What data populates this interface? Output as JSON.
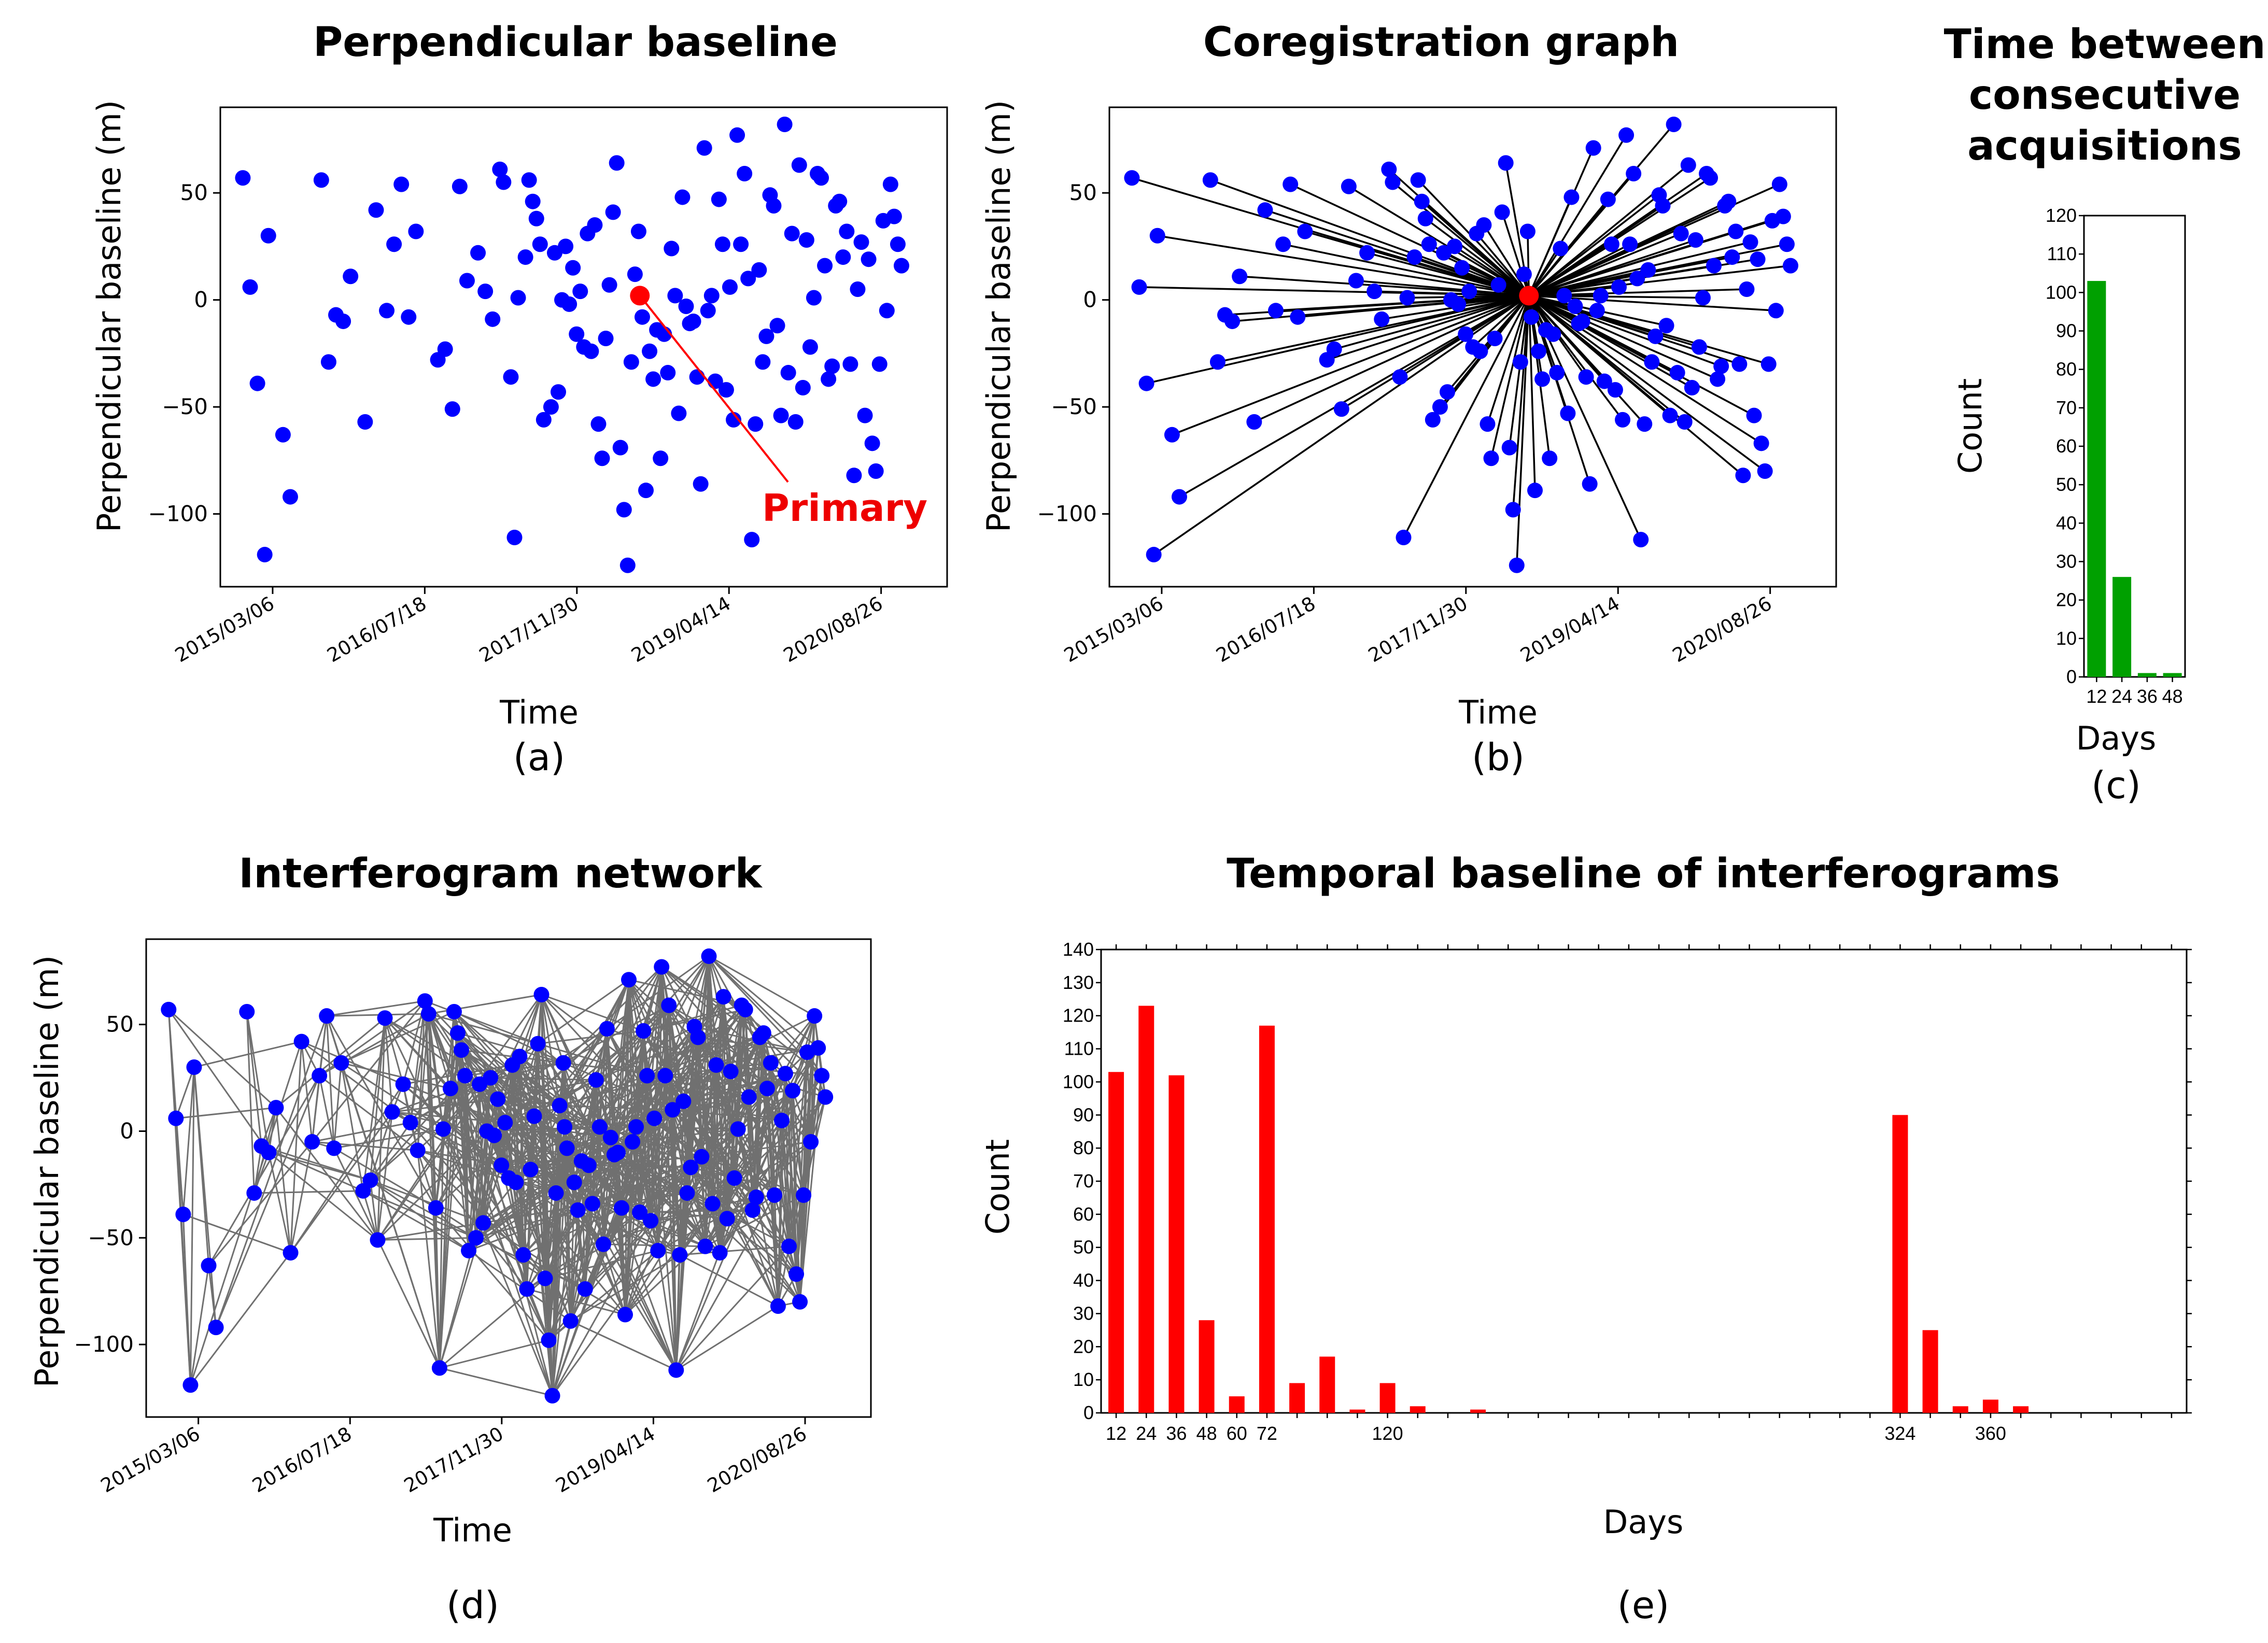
{
  "colors": {
    "point": "#0000ff",
    "primary": "#ff0000",
    "edge": "#000000",
    "network": "#707070",
    "hist_c": "#00a000",
    "hist_e": "#ff0000"
  },
  "chart_data": [
    {
      "id": "a",
      "type": "scatter",
      "title": "Perpendicular baseline",
      "xlabel": "Time",
      "ylabel": "Perpendicular baseline (m)",
      "subcaption": "(a)",
      "annotation": "Primary",
      "xtick_labels": [
        "2015/03/06",
        "2016/07/18",
        "2017/11/30",
        "2019/04/14",
        "2020/08/26"
      ],
      "yticks": [
        50,
        0,
        -50,
        -100
      ],
      "ytick_labels": [
        "50",
        "0",
        "−50",
        "−100"
      ],
      "ylim": [
        -134,
        90
      ],
      "xlim": [
        "2014/09/15",
        "2021/03/31"
      ],
      "primary": {
        "x": "2018/06/25",
        "y": 2
      },
      "points": [
        {
          "x": "2014/11/28",
          "y": 57
        },
        {
          "x": "2014/12/22",
          "y": 6
        },
        {
          "x": "2015/01/15",
          "y": -39
        },
        {
          "x": "2015/02/08",
          "y": -119
        },
        {
          "x": "2015/02/20",
          "y": 30
        },
        {
          "x": "2015/04/09",
          "y": -63
        },
        {
          "x": "2015/05/03",
          "y": -92
        },
        {
          "x": "2015/08/13",
          "y": 56
        },
        {
          "x": "2015/09/06",
          "y": -29
        },
        {
          "x": "2015/09/30",
          "y": -7
        },
        {
          "x": "2015/10/24",
          "y": -10
        },
        {
          "x": "2015/11/17",
          "y": 11
        },
        {
          "x": "2016/01/04",
          "y": -57
        },
        {
          "x": "2016/02/09",
          "y": 42
        },
        {
          "x": "2016/03/15",
          "y": -5
        },
        {
          "x": "2016/04/08",
          "y": 26
        },
        {
          "x": "2016/05/02",
          "y": 54
        },
        {
          "x": "2016/05/26",
          "y": -8
        },
        {
          "x": "2016/06/19",
          "y": 32
        },
        {
          "x": "2016/08/30",
          "y": -28
        },
        {
          "x": "2016/09/23",
          "y": -23
        },
        {
          "x": "2016/10/17",
          "y": -51
        },
        {
          "x": "2016/11/10",
          "y": 53
        },
        {
          "x": "2016/12/04",
          "y": 9
        },
        {
          "x": "2017/01/09",
          "y": 22
        },
        {
          "x": "2017/02/02",
          "y": 4
        },
        {
          "x": "2017/02/26",
          "y": -9
        },
        {
          "x": "2017/03/22",
          "y": 61
        },
        {
          "x": "2017/04/03",
          "y": 55
        },
        {
          "x": "2017/04/27",
          "y": -36
        },
        {
          "x": "2017/05/09",
          "y": -111
        },
        {
          "x": "2017/05/21",
          "y": 1
        },
        {
          "x": "2017/06/14",
          "y": 20
        },
        {
          "x": "2017/06/26",
          "y": 56
        },
        {
          "x": "2017/07/08",
          "y": 46
        },
        {
          "x": "2017/07/20",
          "y": 38
        },
        {
          "x": "2017/08/01",
          "y": 26
        },
        {
          "x": "2017/08/13",
          "y": -56
        },
        {
          "x": "2017/09/06",
          "y": -50
        },
        {
          "x": "2017/09/18",
          "y": 22
        },
        {
          "x": "2017/09/30",
          "y": -43
        },
        {
          "x": "2017/10/12",
          "y": 0
        },
        {
          "x": "2017/10/24",
          "y": 25
        },
        {
          "x": "2017/11/05",
          "y": -2
        },
        {
          "x": "2017/11/17",
          "y": 15
        },
        {
          "x": "2017/11/29",
          "y": -16
        },
        {
          "x": "2017/12/11",
          "y": 4
        },
        {
          "x": "2017/12/23",
          "y": -22
        },
        {
          "x": "2018/01/04",
          "y": 31
        },
        {
          "x": "2018/01/16",
          "y": -24
        },
        {
          "x": "2018/01/28",
          "y": 35
        },
        {
          "x": "2018/02/09",
          "y": -58
        },
        {
          "x": "2018/02/21",
          "y": -74
        },
        {
          "x": "2018/03/05",
          "y": -18
        },
        {
          "x": "2018/03/17",
          "y": 7
        },
        {
          "x": "2018/03/29",
          "y": 41
        },
        {
          "x": "2018/04/10",
          "y": 64
        },
        {
          "x": "2018/04/22",
          "y": -69
        },
        {
          "x": "2018/05/04",
          "y": -98
        },
        {
          "x": "2018/05/16",
          "y": -124
        },
        {
          "x": "2018/05/28",
          "y": -29
        },
        {
          "x": "2018/06/09",
          "y": 12
        },
        {
          "x": "2018/06/21",
          "y": 32
        },
        {
          "x": "2018/07/03",
          "y": -8
        },
        {
          "x": "2018/07/15",
          "y": -89
        },
        {
          "x": "2018/07/27",
          "y": -24
        },
        {
          "x": "2018/08/08",
          "y": -37
        },
        {
          "x": "2018/08/20",
          "y": -14
        },
        {
          "x": "2018/09/01",
          "y": -74
        },
        {
          "x": "2018/09/13",
          "y": -16
        },
        {
          "x": "2018/09/25",
          "y": -34
        },
        {
          "x": "2018/10/07",
          "y": 24
        },
        {
          "x": "2018/10/19",
          "y": 2
        },
        {
          "x": "2018/10/31",
          "y": -53
        },
        {
          "x": "2018/11/12",
          "y": 48
        },
        {
          "x": "2018/11/24",
          "y": -3
        },
        {
          "x": "2018/12/06",
          "y": -11
        },
        {
          "x": "2018/12/18",
          "y": -10
        },
        {
          "x": "2018/12/30",
          "y": -36
        },
        {
          "x": "2019/01/11",
          "y": -86
        },
        {
          "x": "2019/01/23",
          "y": 71
        },
        {
          "x": "2019/02/04",
          "y": -5
        },
        {
          "x": "2019/02/16",
          "y": 2
        },
        {
          "x": "2019/02/28",
          "y": -38
        },
        {
          "x": "2019/03/12",
          "y": 47
        },
        {
          "x": "2019/03/24",
          "y": 26
        },
        {
          "x": "2019/04/05",
          "y": -42
        },
        {
          "x": "2019/04/17",
          "y": 6
        },
        {
          "x": "2019/04/29",
          "y": -56
        },
        {
          "x": "2019/05/11",
          "y": 77
        },
        {
          "x": "2019/05/23",
          "y": 26
        },
        {
          "x": "2019/06/04",
          "y": 59
        },
        {
          "x": "2019/06/16",
          "y": 10
        },
        {
          "x": "2019/06/28",
          "y": -112
        },
        {
          "x": "2019/07/10",
          "y": -58
        },
        {
          "x": "2019/07/22",
          "y": 14
        },
        {
          "x": "2019/08/03",
          "y": -29
        },
        {
          "x": "2019/08/15",
          "y": -17
        },
        {
          "x": "2019/08/27",
          "y": 49
        },
        {
          "x": "2019/09/08",
          "y": 44
        },
        {
          "x": "2019/09/20",
          "y": -12
        },
        {
          "x": "2019/10/02",
          "y": -54
        },
        {
          "x": "2019/10/14",
          "y": 82
        },
        {
          "x": "2019/10/26",
          "y": -34
        },
        {
          "x": "2019/11/07",
          "y": 31
        },
        {
          "x": "2019/11/19",
          "y": -57
        },
        {
          "x": "2019/12/01",
          "y": 63
        },
        {
          "x": "2019/12/13",
          "y": -41
        },
        {
          "x": "2019/12/25",
          "y": 28
        },
        {
          "x": "2020/01/06",
          "y": -22
        },
        {
          "x": "2020/01/18",
          "y": 1
        },
        {
          "x": "2020/01/30",
          "y": 59
        },
        {
          "x": "2020/02/11",
          "y": 57
        },
        {
          "x": "2020/02/23",
          "y": 16
        },
        {
          "x": "2020/03/06",
          "y": -37
        },
        {
          "x": "2020/03/18",
          "y": -31
        },
        {
          "x": "2020/03/30",
          "y": 44
        },
        {
          "x": "2020/04/11",
          "y": 46
        },
        {
          "x": "2020/04/23",
          "y": 20
        },
        {
          "x": "2020/05/05",
          "y": 32
        },
        {
          "x": "2020/05/17",
          "y": -30
        },
        {
          "x": "2020/05/29",
          "y": -82
        },
        {
          "x": "2020/06/10",
          "y": 5
        },
        {
          "x": "2020/06/22",
          "y": 27
        },
        {
          "x": "2020/07/04",
          "y": -54
        },
        {
          "x": "2020/07/16",
          "y": 19
        },
        {
          "x": "2020/07/28",
          "y": -67
        },
        {
          "x": "2020/08/09",
          "y": -80
        },
        {
          "x": "2020/08/21",
          "y": -30
        },
        {
          "x": "2020/09/02",
          "y": 37
        },
        {
          "x": "2020/09/14",
          "y": -5
        },
        {
          "x": "2020/09/26",
          "y": 54
        },
        {
          "x": "2020/10/08",
          "y": 39
        },
        {
          "x": "2020/10/20",
          "y": 26
        },
        {
          "x": "2020/11/01",
          "y": 16
        }
      ]
    },
    {
      "id": "b",
      "type": "scatter",
      "title": "Coregistration graph",
      "xlabel": "Time",
      "ylabel": "Perpendicular baseline (m)",
      "subcaption": "(b)",
      "xtick_labels": [
        "2015/03/06",
        "2016/07/18",
        "2017/11/30",
        "2019/04/14",
        "2020/08/26"
      ],
      "yticks": [
        50,
        0,
        -50,
        -100
      ],
      "ytick_labels": [
        "50",
        "0",
        "−50",
        "−100"
      ],
      "ylim": [
        -134,
        90
      ],
      "xlim": [
        "2014/09/15",
        "2021/03/31"
      ],
      "note": "same acquisitions as (a); each connected to the primary"
    },
    {
      "id": "c",
      "type": "bar",
      "title_lines": [
        "Time between",
        "consecutive",
        "acquisitions"
      ],
      "xlabel": "Days",
      "ylabel": "Count",
      "subcaption": "(c)",
      "categories": [
        12,
        24,
        36,
        48
      ],
      "values": [
        103,
        26,
        1,
        1
      ],
      "ylim": [
        0,
        120
      ],
      "yticks": [
        0,
        10,
        20,
        30,
        40,
        50,
        60,
        70,
        80,
        90,
        100,
        110,
        120
      ],
      "xticks": [
        12,
        24,
        36,
        48
      ]
    },
    {
      "id": "d",
      "type": "scatter",
      "title": "Interferogram network",
      "xlabel": "Time",
      "ylabel": "Perpendicular baseline (m)",
      "subcaption": "(d)",
      "xtick_labels": [
        "2015/03/06",
        "2016/07/18",
        "2017/11/30",
        "2019/04/14",
        "2020/08/26"
      ],
      "yticks": [
        50,
        0,
        -50,
        -100
      ],
      "ytick_labels": [
        "50",
        "0",
        "−50",
        "−100"
      ],
      "ylim": [
        -134,
        90
      ],
      "xlim": [
        "2014/09/15",
        "2021/03/31"
      ],
      "note": "same acquisitions as (a); edges between acquisitions within 72 days and between acquisitions 324–372 days apart"
    },
    {
      "id": "e",
      "type": "bar",
      "title": "Temporal baseline of interferograms",
      "xlabel": "Days",
      "ylabel": "Count",
      "subcaption": "(e)",
      "categories": [
        12,
        24,
        36,
        48,
        60,
        72,
        84,
        96,
        108,
        120,
        132,
        156,
        324,
        336,
        348,
        360,
        372
      ],
      "values": [
        103,
        123,
        102,
        28,
        5,
        117,
        9,
        17,
        1,
        9,
        2,
        1,
        90,
        25,
        2,
        4,
        2
      ],
      "ylim": [
        0,
        140
      ],
      "xlim": [
        6,
        438
      ],
      "yticks": [
        0,
        10,
        20,
        30,
        40,
        50,
        60,
        70,
        80,
        90,
        100,
        110,
        120,
        130,
        140
      ],
      "xtick_labels": [
        12,
        24,
        36,
        48,
        60,
        72,
        120,
        324,
        360
      ]
    }
  ]
}
